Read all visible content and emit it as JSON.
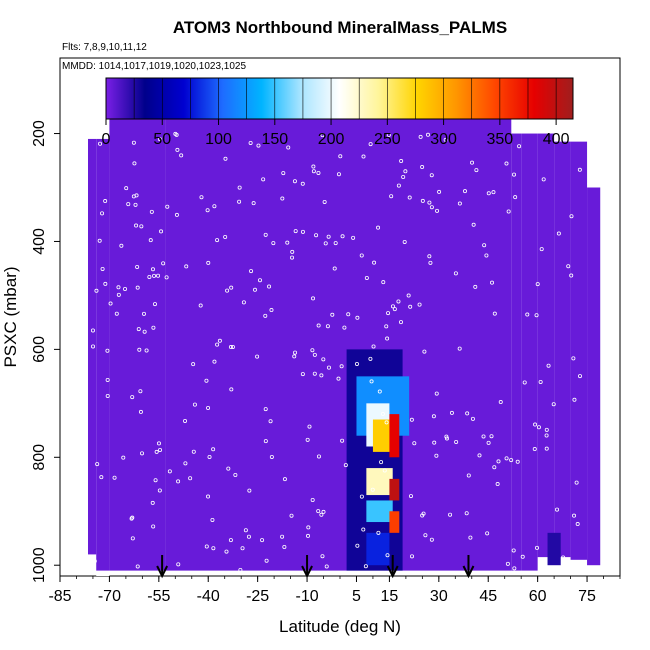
{
  "chart_data": {
    "type": "heatmap",
    "title": "ATOM3 Northbound MineralMass_PALMS",
    "subtitle_flights": "Flts: 7,8,9,10,11,12",
    "subtitle_dates": "MMDD: 1014,1017,1019,1020,1023,1025",
    "xlabel": "Latitude (deg N)",
    "ylabel": "PSXC (mbar)",
    "xlim": [
      -85,
      85
    ],
    "ylim": [
      1020,
      60
    ],
    "y_reversed": true,
    "x_ticks": [
      -85,
      -70,
      -55,
      -40,
      -25,
      -10,
      5,
      15,
      30,
      45,
      60,
      75
    ],
    "y_ticks": [
      200,
      400,
      600,
      800,
      1000
    ],
    "colorbar": {
      "ticks": [
        0,
        50,
        100,
        150,
        200,
        250,
        300,
        350,
        400
      ],
      "range": [
        0,
        415
      ],
      "colors": [
        "#7a1fe6",
        "#00008b",
        "#0000d0",
        "#1e6cff",
        "#00b4ff",
        "#a8e4ff",
        "#ffffff",
        "#fff59a",
        "#ffd400",
        "#ff9600",
        "#ff4600",
        "#e60000",
        "#a01e1e"
      ]
    },
    "background_value": 5,
    "plume_regions": [
      {
        "lat_range": [
          2,
          19
        ],
        "p_range": [
          600,
          1010
        ],
        "value": 30
      },
      {
        "lat_range": [
          5,
          21
        ],
        "p_range": [
          650,
          760
        ],
        "value": 120
      },
      {
        "lat_range": [
          8,
          15
        ],
        "p_range": [
          700,
          780
        ],
        "value": 200
      },
      {
        "lat_range": [
          10,
          16
        ],
        "p_range": [
          730,
          790
        ],
        "value": 280
      },
      {
        "lat_range": [
          15,
          18
        ],
        "p_range": [
          720,
          800
        ],
        "value": 380
      },
      {
        "lat_range": [
          8,
          16
        ],
        "p_range": [
          820,
          870
        ],
        "value": 230
      },
      {
        "lat_range": [
          15,
          18
        ],
        "p_range": [
          840,
          880
        ],
        "value": 400
      },
      {
        "lat_range": [
          8,
          16
        ],
        "p_range": [
          880,
          920
        ],
        "value": 150
      },
      {
        "lat_range": [
          15,
          18
        ],
        "p_range": [
          900,
          940
        ],
        "value": 350
      },
      {
        "lat_range": [
          8,
          15
        ],
        "p_range": [
          940,
          1000
        ],
        "value": 80
      }
    ],
    "flight_markers_lat": [
      -54,
      -10,
      16,
      39
    ]
  }
}
